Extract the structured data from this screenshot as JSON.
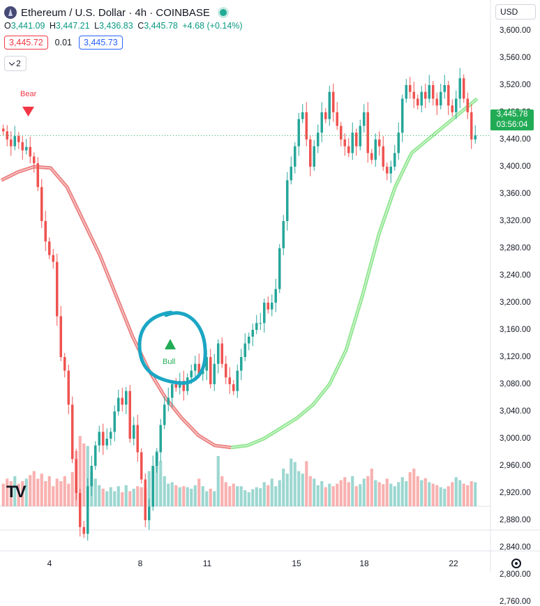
{
  "header": {
    "title": "Ethereum / U.S. Dollar · 4h · COINBASE",
    "ohlc": {
      "o_label": "O",
      "o": "3,441.09",
      "h_label": "H",
      "h": "3,447.21",
      "l_label": "L",
      "l": "3,436.83",
      "c_label": "C",
      "c": "3,445.78",
      "change": "+4.68 (+0.14%)"
    },
    "sell_price": "3,445.72",
    "spread": "0.01",
    "buy_price": "3,445.73",
    "indicator_count": "2",
    "currency": "USD"
  },
  "last_price": {
    "value": "3,445.78",
    "countdown": "03:56:04"
  },
  "colors": {
    "up": "#26a69a",
    "down": "#ef5350",
    "ma_up": "#7ee27e",
    "ma_down": "#e86a6a",
    "annotation": "#1ba6c4",
    "last_price": "#22ab55"
  },
  "chart_data": {
    "type": "candlestick",
    "y_axis": {
      "ticks": [
        "3,600.00",
        "3,560.00",
        "3,520.00",
        "3,480.00",
        "3,440.00",
        "3,400.00",
        "3,360.00",
        "3,320.00",
        "3,280.00",
        "3,240.00",
        "3,200.00",
        "3,160.00",
        "3,120.00",
        "3,080.00",
        "3,040.00",
        "3,000.00",
        "2,960.00",
        "2,920.00",
        "2,880.00",
        "2,840.00",
        "2,800.00",
        "2,760.00"
      ],
      "range": [
        2740,
        3618
      ]
    },
    "x_axis": {
      "ticks": [
        "4",
        "8",
        "11",
        "15",
        "18",
        "22"
      ]
    },
    "signals": [
      {
        "label": "Bear",
        "type": "sell",
        "price": 3440
      },
      {
        "label": "Bull",
        "type": "buy",
        "price": 3032
      }
    ],
    "close_series": [
      3452,
      3440,
      3430,
      3445,
      3436,
      3424,
      3429,
      3415,
      3405,
      3370,
      3320,
      3290,
      3270,
      3260,
      3180,
      3120,
      3100,
      3050,
      2970,
      2920,
      2870,
      2860,
      2930,
      2960,
      2990,
      3010,
      2990,
      3000,
      3010,
      3040,
      3060,
      3050,
      3070,
      3000,
      3020,
      2980,
      2940,
      2880,
      2900,
      2960,
      2980,
      3020,
      3050,
      3060,
      3080,
      3075,
      3085,
      3070,
      3090,
      3100,
      3110,
      3095,
      3100,
      3120,
      3080,
      3110,
      3140,
      3110,
      3090,
      3080,
      3070,
      3100,
      3120,
      3140,
      3150,
      3160,
      3170,
      3170,
      3200,
      3190,
      3200,
      3220,
      3280,
      3320,
      3380,
      3400,
      3430,
      3470,
      3480,
      3440,
      3400,
      3430,
      3450,
      3480,
      3470,
      3510,
      3480,
      3460,
      3440,
      3430,
      3420,
      3450,
      3430,
      3460,
      3480,
      3420,
      3410,
      3440,
      3430,
      3400,
      3390,
      3400,
      3420,
      3450,
      3500,
      3520,
      3510,
      3500,
      3490,
      3510,
      3500,
      3520,
      3500,
      3490,
      3510,
      3520,
      3490,
      3480,
      3500,
      3530,
      3500,
      3480,
      3440,
      3446
    ],
    "ma_series": [
      3380,
      3392,
      3400,
      3398,
      3370,
      3320,
      3270,
      3210,
      3150,
      3100,
      3060,
      3030,
      3005,
      2990,
      2987,
      2990,
      3000,
      3015,
      3030,
      3050,
      3080,
      3130,
      3210,
      3300,
      3370,
      3420,
      3440,
      3460,
      3480,
      3500
    ],
    "volume_series": [
      45,
      55,
      50,
      60,
      45,
      50,
      55,
      62,
      70,
      55,
      65,
      50,
      60,
      40,
      55,
      50,
      60,
      45,
      68,
      110,
      140,
      125,
      120,
      70,
      55,
      42,
      35,
      30,
      38,
      30,
      40,
      28,
      42,
      30,
      35,
      40,
      38,
      35,
      70,
      80,
      110,
      90,
      60,
      45,
      48,
      42,
      38,
      40,
      38,
      35,
      42,
      55,
      40,
      30,
      35,
      30,
      100,
      60,
      48,
      40,
      45,
      40,
      40,
      32,
      28,
      34,
      38,
      36,
      48,
      42,
      55,
      40,
      52,
      75,
      65,
      95,
      88,
      70,
      65,
      90,
      60,
      55,
      42,
      50,
      38,
      45,
      40,
      45,
      52,
      58,
      48,
      60,
      40,
      44,
      55,
      60,
      75,
      52,
      48,
      44,
      55,
      45,
      40,
      48,
      58,
      50,
      68,
      75,
      60,
      52,
      56,
      48,
      45,
      42,
      38,
      35,
      40,
      48,
      58,
      52,
      45,
      42,
      50,
      48
    ]
  }
}
